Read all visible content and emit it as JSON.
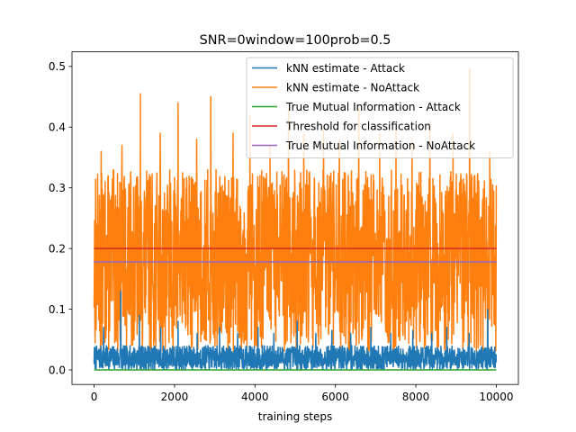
{
  "chart_data": {
    "type": "line",
    "title": "SNR=0window=100prob=0.5",
    "xlabel": "training steps",
    "ylabel": "",
    "xlim": [
      -550,
      10550
    ],
    "ylim": [
      -0.024,
      0.524
    ],
    "xticks": [
      0,
      2000,
      4000,
      6000,
      8000,
      10000
    ],
    "yticks": [
      0.0,
      0.1,
      0.2,
      0.3,
      0.4,
      0.5
    ],
    "xtick_labels": [
      "0",
      "2000",
      "4000",
      "6000",
      "8000",
      "10000"
    ],
    "ytick_labels": [
      "0.0",
      "0.1",
      "0.2",
      "0.3",
      "0.4",
      "0.5"
    ],
    "grid": false,
    "legend_position": "top-right",
    "series": [
      {
        "name": "kNN estimate - Attack",
        "color": "#1f77b4",
        "x_range": [
          0,
          10000
        ],
        "typical_range": [
          0.0,
          0.04
        ],
        "peak_values": [
          0.07,
          0.13,
          0.09,
          0.07,
          0.08,
          0.06,
          0.07,
          0.06,
          0.07,
          0.06,
          0.08,
          0.06,
          0.065,
          0.06,
          0.07,
          0.06,
          0.065,
          0.06,
          0.07,
          0.06,
          0.1
        ]
      },
      {
        "name": "kNN estimate - NoAttack",
        "color": "#ff7f0e",
        "x_range": [
          0,
          10000
        ],
        "typical_range": [
          0.03,
          0.33
        ],
        "peak_values": [
          0.36,
          0.37,
          0.455,
          0.39,
          0.44,
          0.38,
          0.45,
          0.39,
          0.42,
          0.37,
          0.43,
          0.39,
          0.4,
          0.38,
          0.43,
          0.39,
          0.4,
          0.38,
          0.41,
          0.39,
          0.497,
          0.36
        ]
      },
      {
        "name": "True Mutual Information - Attack",
        "color": "#2ca02c",
        "x": [
          0,
          10000
        ],
        "y": [
          0.0,
          0.0
        ]
      },
      {
        "name": "Threshold for classification",
        "color": "#d62728",
        "x": [
          0,
          10000
        ],
        "y": [
          0.2,
          0.2
        ]
      },
      {
        "name": "True Mutual Information - NoAttack",
        "color": "#9467bd",
        "x": [
          0,
          10000
        ],
        "y": [
          0.178,
          0.178
        ]
      }
    ]
  }
}
